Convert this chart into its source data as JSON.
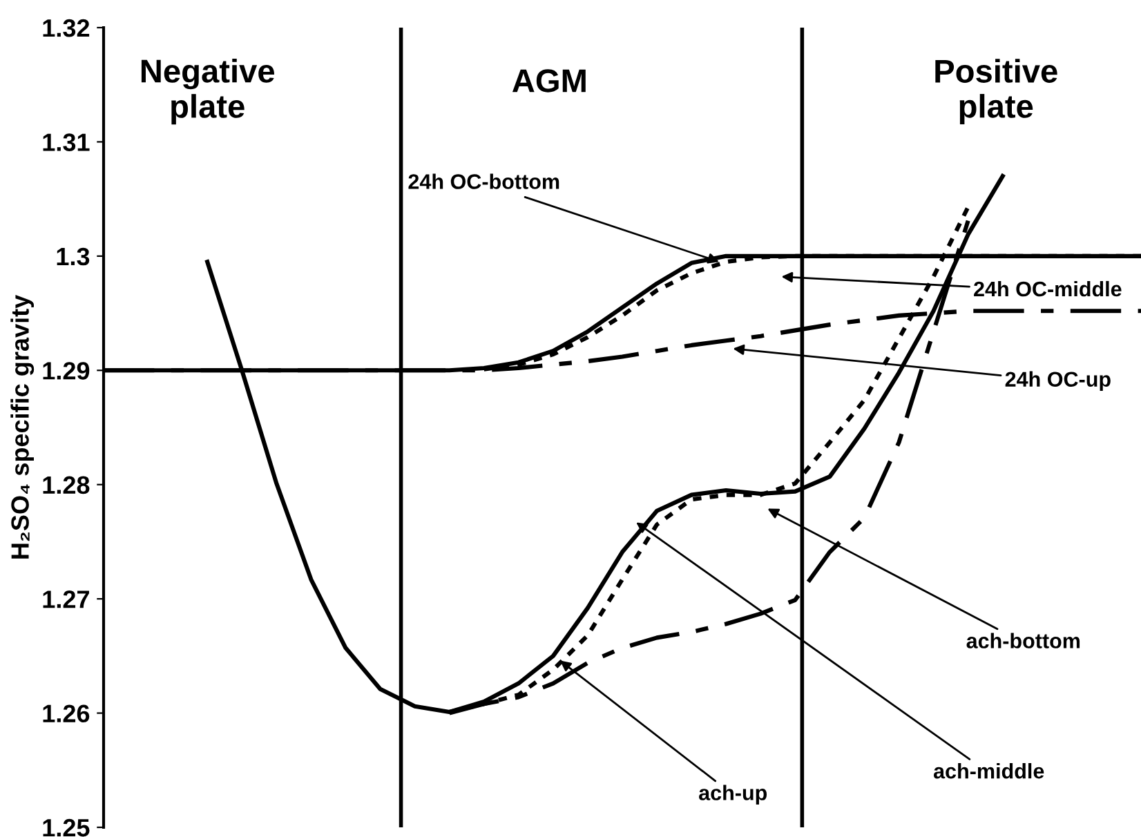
{
  "chart_data": {
    "type": "line",
    "ylabel": "H₂SO₄ specific gravity",
    "categories": [
      null,
      null,
      null,
      null,
      null,
      null,
      null,
      null,
      null,
      null,
      null,
      null,
      null,
      null,
      null,
      null,
      null,
      null,
      null,
      null,
      null,
      null,
      null,
      null,
      null,
      null,
      null,
      null,
      null,
      null,
      null
    ],
    "ylim": [
      1.25,
      1.32
    ],
    "yticks": [
      1.25,
      1.26,
      1.27,
      1.28,
      1.29,
      1.3,
      1.31,
      1.32
    ],
    "tick_labels": "y",
    "grid": false,
    "legend": false,
    "series": [
      {
        "color": "#000000",
        "line_style": "solid",
        "values": [
          1.29,
          1.29,
          1.29,
          1.29,
          1.29,
          1.29,
          1.29,
          1.29,
          1.29,
          1.29,
          1.29,
          1.2902,
          1.2907,
          1.2917,
          1.2934,
          1.2955,
          1.2976,
          1.2994,
          1.3,
          1.3,
          1.3,
          1.3,
          1.3,
          1.3,
          1.3,
          1.3,
          1.3,
          1.3,
          1.3,
          1.3,
          1.3
        ]
      },
      {
        "color": "#000000",
        "line_style": "dotted",
        "values": [
          null,
          null,
          null,
          null,
          null,
          null,
          null,
          null,
          null,
          null,
          null,
          1.2901,
          1.2905,
          1.2914,
          1.2929,
          1.2948,
          1.297,
          1.2985,
          1.2995,
          1.2999,
          1.3,
          1.3,
          1.3,
          1.3,
          1.3,
          1.3,
          1.3,
          1.3,
          1.3,
          1.3,
          1.3
        ]
      },
      {
        "color": "#000000",
        "line_style": "dashdot",
        "values": [
          1.29,
          1.29,
          1.29,
          1.29,
          1.29,
          1.29,
          1.29,
          1.29,
          1.29,
          1.29,
          1.29,
          1.29,
          1.2902,
          1.2905,
          1.2908,
          1.2912,
          1.2917,
          1.2922,
          1.2926,
          1.293,
          1.2935,
          1.294,
          1.2944,
          1.2948,
          1.295,
          1.2952,
          1.2952,
          1.2952,
          1.2952,
          1.2952,
          1.2952
        ]
      },
      {
        "color": "#000000",
        "line_style": "solid",
        "values": [
          null,
          null,
          null,
          1.2995,
          1.29,
          1.2801,
          1.2717,
          1.2657,
          1.2621,
          1.2606,
          1.2601,
          1.261,
          1.2626,
          1.265,
          1.2692,
          1.2741,
          1.2777,
          1.2791,
          1.2795,
          1.2792,
          1.2794,
          1.2807,
          1.2849,
          1.2898,
          1.2952,
          1.3019,
          1.307,
          null,
          null,
          null,
          null
        ]
      },
      {
        "color": "#000000",
        "line_style": "dotted",
        "values": [
          null,
          null,
          null,
          null,
          null,
          null,
          null,
          null,
          null,
          null,
          1.2601,
          1.2608,
          1.2616,
          1.2638,
          1.2668,
          1.2717,
          1.2765,
          1.2787,
          1.2791,
          1.2791,
          1.2801,
          1.2837,
          1.2874,
          1.2928,
          1.2982,
          1.3043,
          null,
          null,
          null,
          null,
          null
        ]
      },
      {
        "color": "#000000",
        "line_style": "dashdot",
        "values": [
          null,
          null,
          null,
          null,
          null,
          null,
          null,
          null,
          null,
          null,
          1.26,
          1.2608,
          1.2614,
          1.2626,
          1.2644,
          1.2657,
          1.2666,
          1.2671,
          1.2678,
          1.2687,
          1.2699,
          1.2741,
          1.2771,
          1.2837,
          1.2934,
          1.3031,
          null,
          null,
          null,
          null,
          null
        ]
      }
    ],
    "annotations": [
      "Negative\nplate",
      "AGM",
      "Positive\nplate",
      "24h OC-bottom",
      "24h OC-middle",
      "24h OC-up",
      "ach-bottom",
      "ach-middle",
      "ach-up"
    ]
  }
}
